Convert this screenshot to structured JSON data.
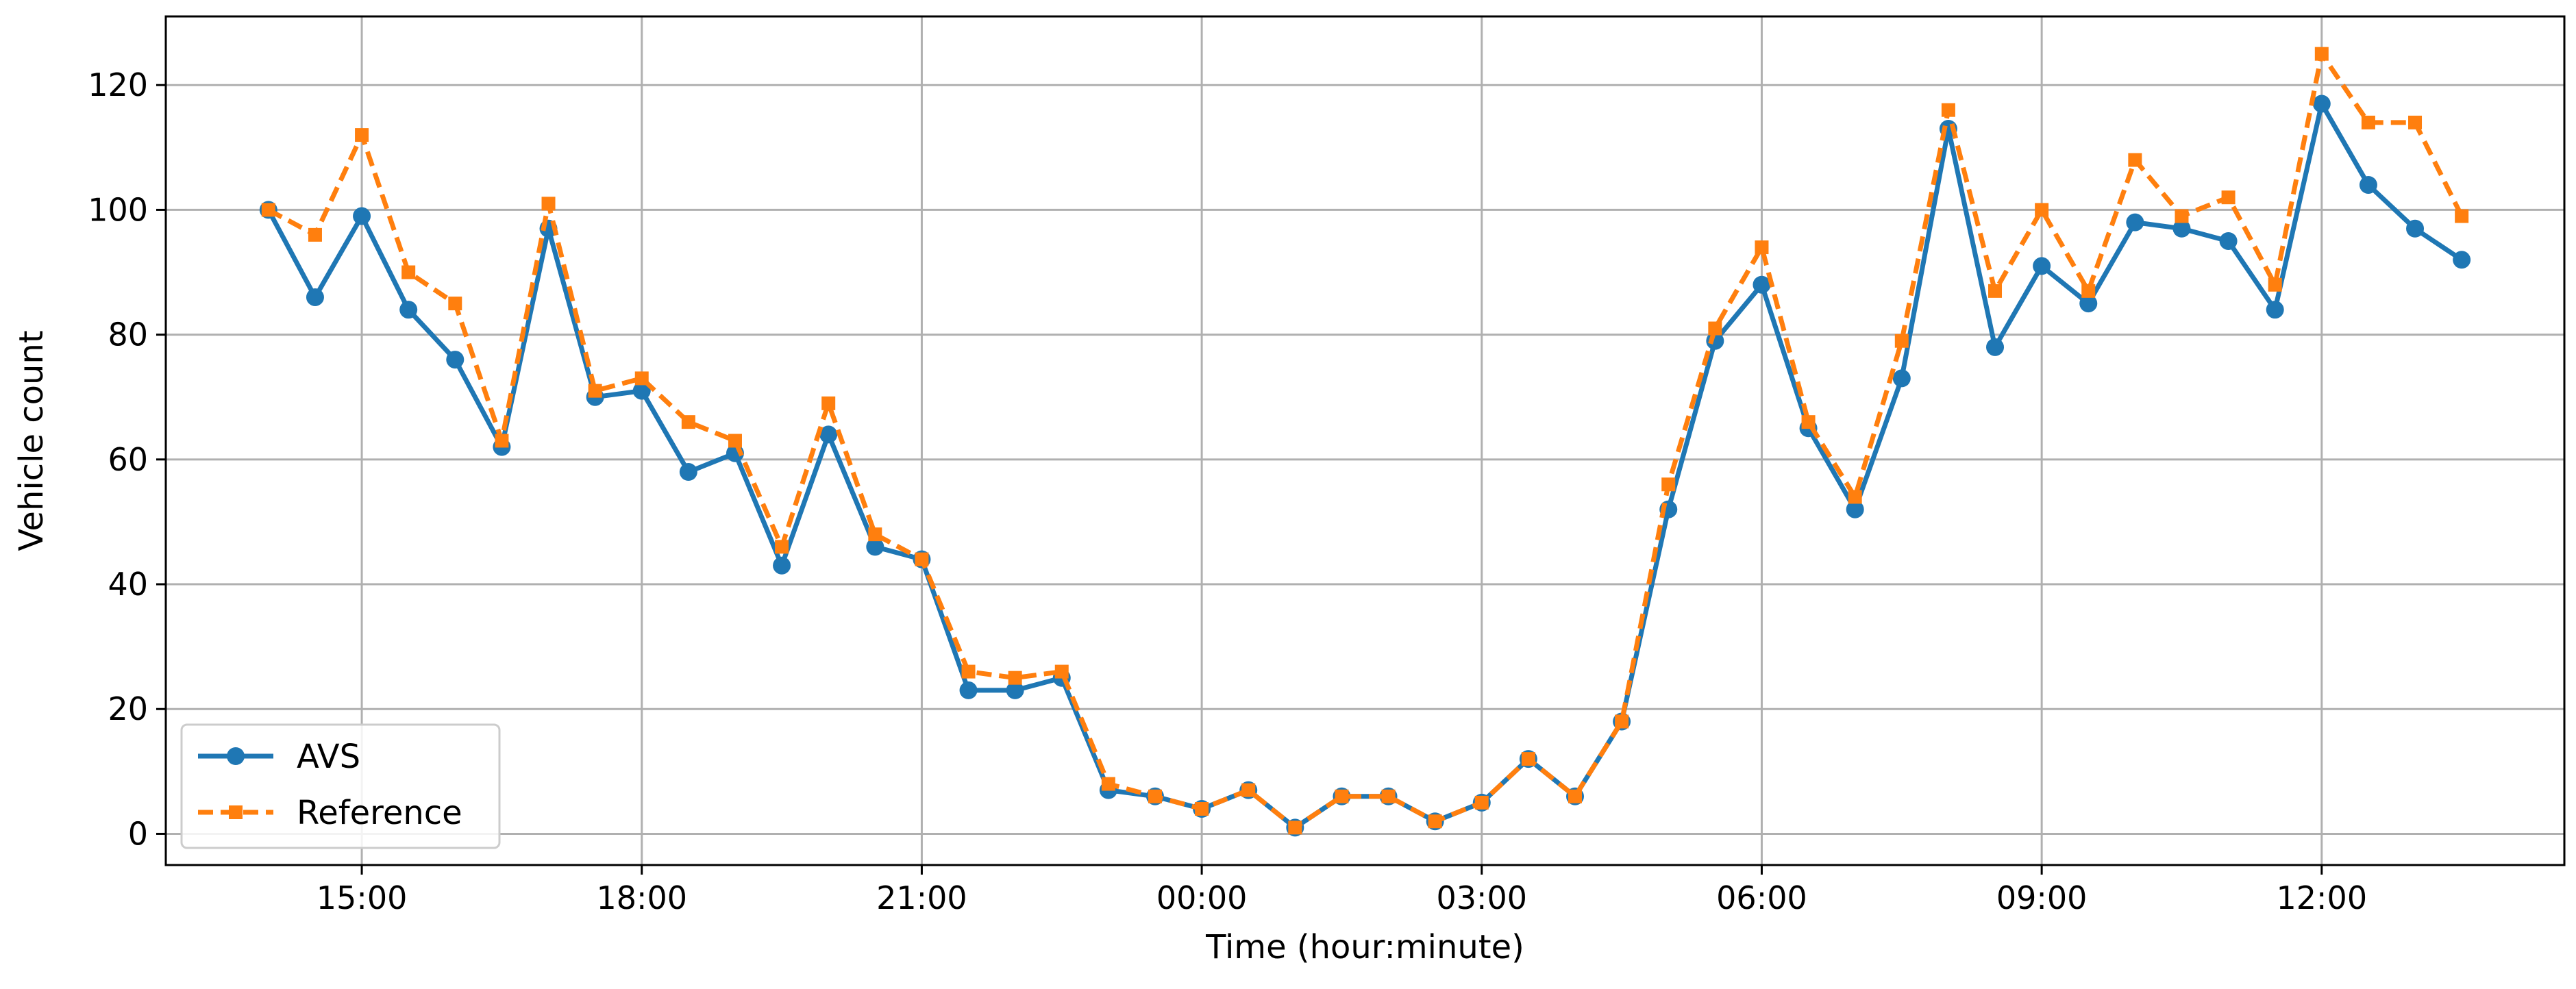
{
  "chart_data": {
    "type": "line",
    "xlabel": "Time (hour:minute)",
    "ylabel": "Vehicle count",
    "grid": true,
    "legend_position": "lower-left",
    "x_ticks": [
      "15:00",
      "18:00",
      "21:00",
      "00:00",
      "03:00",
      "06:00",
      "09:00",
      "12:00"
    ],
    "y_ticks": [
      "0",
      "20",
      "40",
      "60",
      "80",
      "100",
      "120"
    ],
    "xlim": [
      "14:00",
      "13:30 (next day)"
    ],
    "ylim": [
      -5,
      131
    ],
    "x": [
      "14:00",
      "14:30",
      "15:00",
      "15:30",
      "16:00",
      "16:30",
      "17:00",
      "17:30",
      "18:00",
      "18:30",
      "19:00",
      "19:30",
      "20:00",
      "20:30",
      "21:00",
      "21:30",
      "22:00",
      "22:30",
      "23:00",
      "23:30",
      "00:00",
      "00:30",
      "01:00",
      "01:30",
      "02:00",
      "02:30",
      "03:00",
      "03:30",
      "04:00",
      "04:30",
      "05:00",
      "05:30",
      "06:00",
      "06:30",
      "07:00",
      "07:30",
      "08:00",
      "08:30",
      "09:00",
      "09:30",
      "10:00",
      "10:30",
      "11:00",
      "11:30",
      "12:00",
      "12:30",
      "13:00",
      "13:30"
    ],
    "series": [
      {
        "name": "AVS",
        "color": "#1f77b4",
        "line_style": "solid",
        "marker": "circle",
        "values": [
          100,
          86,
          99,
          84,
          76,
          62,
          97,
          70,
          71,
          58,
          61,
          43,
          64,
          46,
          44,
          23,
          23,
          25,
          7,
          6,
          4,
          7,
          1,
          6,
          6,
          2,
          5,
          12,
          6,
          18,
          52,
          79,
          88,
          65,
          52,
          73,
          113,
          78,
          91,
          85,
          98,
          97,
          95,
          84,
          117,
          104,
          97,
          92
        ]
      },
      {
        "name": "Reference",
        "color": "#ff7f0e",
        "line_style": "dashed",
        "marker": "square",
        "values": [
          100,
          96,
          112,
          90,
          85,
          63,
          101,
          71,
          73,
          66,
          63,
          46,
          69,
          48,
          44,
          26,
          25,
          26,
          8,
          6,
          4,
          7,
          1,
          6,
          6,
          2,
          5,
          12,
          6,
          18,
          56,
          81,
          94,
          66,
          54,
          79,
          116,
          87,
          100,
          87,
          108,
          99,
          102,
          88,
          125,
          114,
          114,
          99
        ]
      }
    ]
  }
}
